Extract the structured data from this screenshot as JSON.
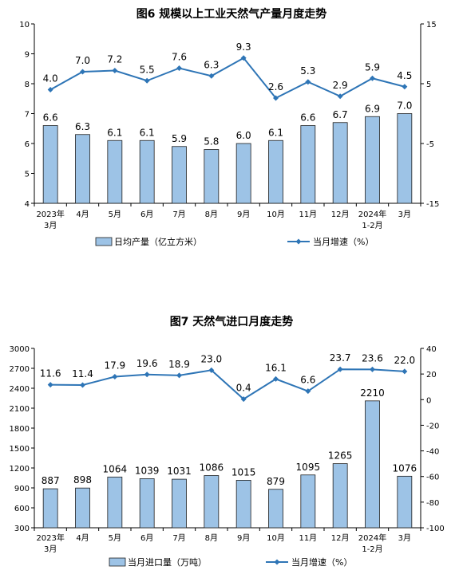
{
  "chart_data": [
    {
      "type": "bar+line",
      "title": "图6  规模以上工业天然气产量月度走势",
      "categories": [
        "2023年\n3月",
        "4月",
        "5月",
        "6月",
        "7月",
        "8月",
        "9月",
        "10月",
        "11月",
        "12月",
        "2024年\n1-2月",
        "3月"
      ],
      "series": [
        {
          "name": "日均产量（亿立方米）",
          "kind": "bar",
          "axis": "left",
          "values": [
            6.6,
            6.3,
            6.1,
            6.1,
            5.9,
            5.8,
            6.0,
            6.1,
            6.6,
            6.7,
            6.9,
            7.0
          ],
          "labels": [
            "6.6",
            "6.3",
            "6.1",
            "6.1",
            "5.9",
            "5.8",
            "6.0",
            "6.1",
            "6.6",
            "6.7",
            "6.9",
            "7.0"
          ]
        },
        {
          "name": "当月增速（%）",
          "kind": "line",
          "axis": "right",
          "values": [
            4.0,
            7.0,
            7.2,
            5.5,
            7.6,
            6.3,
            9.3,
            2.6,
            5.3,
            2.9,
            5.9,
            4.5
          ],
          "labels": [
            "4.0",
            "7.0",
            "7.2",
            "5.5",
            "7.6",
            "6.3",
            "9.3",
            "2.6",
            "5.3",
            "2.9",
            "5.9",
            "4.5"
          ]
        }
      ],
      "ylim_left": [
        4,
        10
      ],
      "yticks_left": [
        4,
        5,
        6,
        7,
        8,
        9,
        10
      ],
      "ylim_right": [
        -15,
        15
      ],
      "yticks_right": [
        -15,
        -5,
        5,
        15
      ],
      "legend_position": "bottom",
      "colors": {
        "bar": "#9DC3E6",
        "bar_edge": "#1F1F1F",
        "line": "#2E75B6"
      }
    },
    {
      "type": "bar+line",
      "title": "图7  天然气进口月度走势",
      "categories": [
        "2023年\n3月",
        "4月",
        "5月",
        "6月",
        "7月",
        "8月",
        "9月",
        "10月",
        "11月",
        "12月",
        "2024年\n1-2月",
        "3月"
      ],
      "series": [
        {
          "name": "当月进口量（万吨）",
          "kind": "bar",
          "axis": "left",
          "values": [
            887,
            898,
            1064,
            1039,
            1031,
            1086,
            1015,
            879,
            1095,
            1265,
            2210,
            1076
          ],
          "labels": [
            "887",
            "898",
            "1064",
            "1039",
            "1031",
            "1086",
            "1015",
            "879",
            "1095",
            "1265",
            "2210",
            "1076"
          ]
        },
        {
          "name": "当月增速（%）",
          "kind": "line",
          "axis": "right",
          "values": [
            11.6,
            11.4,
            17.9,
            19.6,
            18.9,
            23.0,
            0.4,
            16.1,
            6.6,
            23.7,
            23.6,
            22.0
          ],
          "labels": [
            "11.6",
            "11.4",
            "17.9",
            "19.6",
            "18.9",
            "23.0",
            "0.4",
            "16.1",
            "6.6",
            "23.7",
            "23.6",
            "22.0"
          ]
        }
      ],
      "ylim_left": [
        300,
        3000
      ],
      "yticks_left": [
        300,
        600,
        900,
        1200,
        1500,
        1800,
        2100,
        2400,
        2700,
        3000
      ],
      "ylim_right": [
        -100,
        40
      ],
      "yticks_right": [
        -100,
        -80,
        -60,
        -40,
        -20,
        0,
        20,
        40
      ],
      "legend_position": "bottom",
      "colors": {
        "bar": "#9DC3E6",
        "bar_edge": "#1F1F1F",
        "line": "#2E75B6"
      }
    }
  ]
}
